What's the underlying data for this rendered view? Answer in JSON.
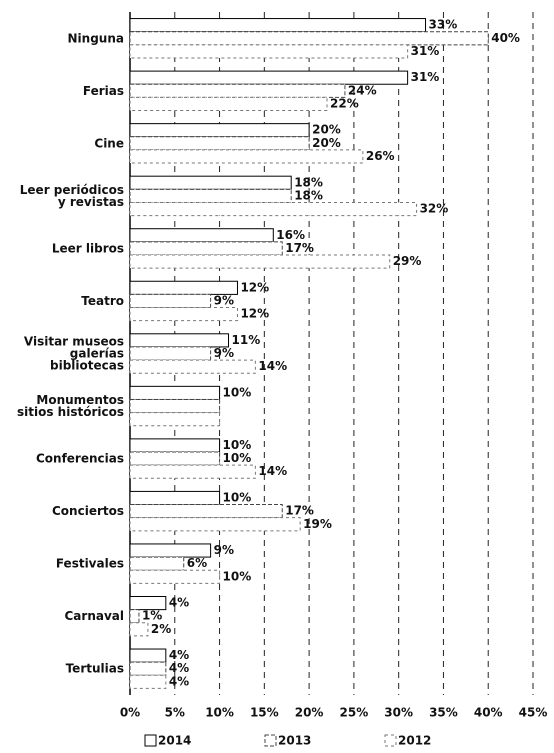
{
  "chart_data": {
    "type": "hbar",
    "categories": [
      "Ninguna",
      "Ferias",
      "Cine",
      "Leer periódicos\ny revistas",
      "Leer libros",
      "Teatro",
      "Visitar museos\ngalerías\nbibliotecas",
      "Monumentos\nsitios históricos",
      "Conferencias",
      "Conciertos",
      "Festivales",
      "Carnaval",
      "Tertulias"
    ],
    "series": [
      {
        "name": "2014",
        "color": "#000000",
        "values": [
          33,
          31,
          20,
          18,
          16,
          12,
          11,
          10,
          10,
          10,
          9,
          4,
          4
        ],
        "value_labels": [
          "33%",
          "31%",
          "20%",
          "18%",
          "16%",
          "12%",
          "11%",
          "10%",
          "10%",
          "10%",
          "9%",
          "4%",
          "4%"
        ]
      },
      {
        "name": "2013",
        "color": "#444444",
        "values": [
          40,
          24,
          20,
          18,
          17,
          9,
          9,
          10,
          10,
          17,
          6,
          1,
          4
        ],
        "value_labels": [
          "40%",
          "24%",
          "20%",
          "18%",
          "17%",
          "9%",
          "9%",
          null,
          "10%",
          "17%",
          "6%",
          "1%",
          "4%"
        ]
      },
      {
        "name": "2012",
        "color": "#777777",
        "values": [
          31,
          22,
          26,
          32,
          29,
          12,
          14,
          10,
          14,
          19,
          10,
          2,
          4
        ],
        "value_labels": [
          "31%",
          "22%",
          "26%",
          "32%",
          "29%",
          "12%",
          "14%",
          null,
          "14%",
          "19%",
          "10%",
          "2%",
          "4%"
        ]
      }
    ],
    "xlim": [
      0,
      45
    ],
    "xticks": [
      {
        "value": 0,
        "label": "0%"
      },
      {
        "value": 5,
        "label": "5%"
      },
      {
        "value": 10,
        "label": "10%"
      },
      {
        "value": 15,
        "label": "15%"
      },
      {
        "value": 20,
        "label": "20%"
      },
      {
        "value": 25,
        "label": "25%"
      },
      {
        "value": 30,
        "label": "30%"
      },
      {
        "value": 35,
        "label": "35%"
      },
      {
        "value": 40,
        "label": "40%"
      },
      {
        "value": 45,
        "label": "45%"
      }
    ],
    "grid": true,
    "legend": "bottom"
  }
}
